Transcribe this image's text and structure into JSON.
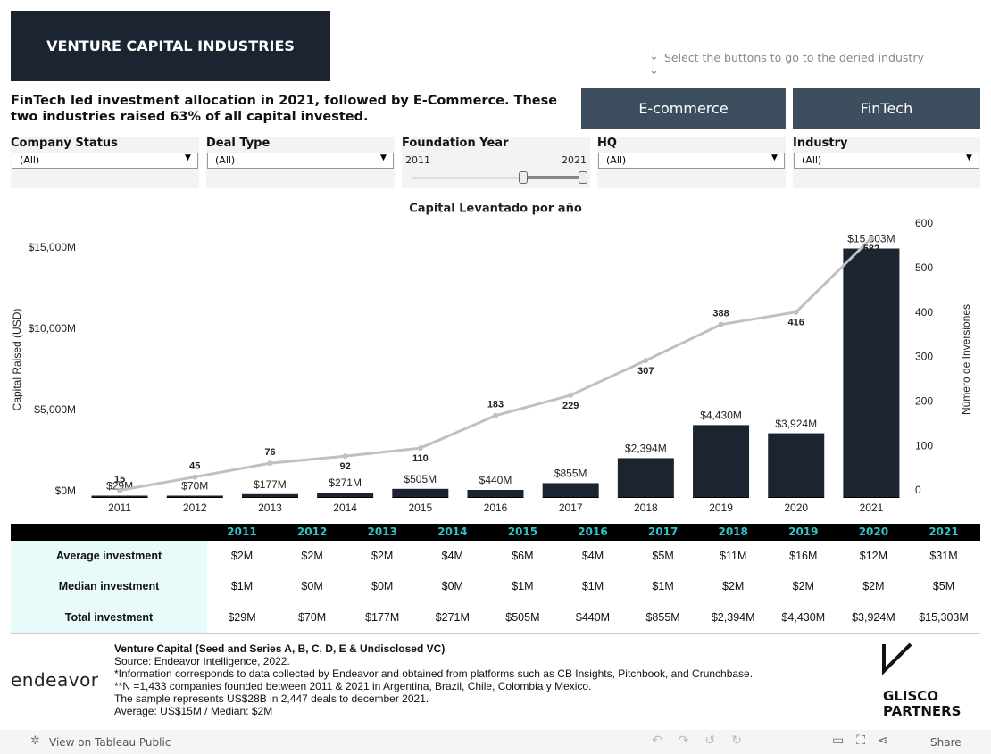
{
  "header": {
    "title": "VENTURE CAPITAL INDUSTRIES",
    "hint": "Select the buttons to go to the deried industry",
    "summary": "FinTech led investment allocation in 2021, followed by E-Commerce. These two industries raised 63% of all capital invested.",
    "buttons": [
      "E-commerce",
      "FinTech"
    ]
  },
  "filters": [
    {
      "label": "Company Status",
      "value": "(All)"
    },
    {
      "label": "Deal Type",
      "value": "(All)"
    },
    {
      "label": "Foundation Year",
      "min": 2011,
      "max": 2021
    },
    {
      "label": "HQ",
      "value": "(All)"
    },
    {
      "label": "Industry",
      "value": "(All)"
    }
  ],
  "chart_data": {
    "type": "combo",
    "title": "Capital Levantado por año",
    "y_label": "Capital Raised (USD)",
    "y2_label": "Número de Inversiones",
    "categories": [
      "2011",
      "2012",
      "2013",
      "2014",
      "2015",
      "2016",
      "2017",
      "2018",
      "2019",
      "2020",
      "2021"
    ],
    "series": [
      {
        "type": "bar",
        "color": "#1c2331",
        "values": [
          29,
          70,
          177,
          271,
          505,
          440,
          855,
          2394,
          4430,
          3924,
          15303
        ],
        "value_labels": [
          "$29M",
          "$70M",
          "$177M",
          "$271M",
          "$505M",
          "$440M",
          "$855M",
          "$2,394M",
          "$4,430M",
          "$3,924M",
          "$15,303M"
        ]
      },
      {
        "type": "line",
        "axis": "y2",
        "color": "#c0c0c0",
        "values": [
          15,
          45,
          76,
          92,
          110,
          183,
          229,
          307,
          388,
          416,
          582
        ]
      }
    ],
    "ylim": [
      0,
      16430
    ],
    "yticks": [
      {
        "value": 0,
        "label": "$0M"
      },
      {
        "value": 5000,
        "label": "$5,000M"
      },
      {
        "value": 10000,
        "label": "$10,000M"
      },
      {
        "value": 15000,
        "label": "$15,000M"
      }
    ],
    "y2lim": [
      0,
      600
    ],
    "y2ticks": [
      0,
      100,
      200,
      300,
      400,
      500,
      600
    ],
    "grid": false
  },
  "table": {
    "columns": [
      2011,
      2012,
      2013,
      2014,
      2015,
      2016,
      2017,
      2018,
      2019,
      2020,
      2021
    ],
    "rows": [
      {
        "label": "Average investment",
        "values": [
          "$2M",
          "$2M",
          "$2M",
          "$4M",
          "$6M",
          "$4M",
          "$5M",
          "$11M",
          "$16M",
          "$12M",
          "$31M"
        ]
      },
      {
        "label": "Median investment",
        "values": [
          "$1M",
          "$0M",
          "$0M",
          "$0M",
          "$1M",
          "$1M",
          "$1M",
          "$2M",
          "$2M",
          "$2M",
          "$5M"
        ]
      },
      {
        "label": "Total investment",
        "values": [
          "$29M",
          "$70M",
          "$177M",
          "$271M",
          "$505M",
          "$440M",
          "$855M",
          "$2,394M",
          "$4,430M",
          "$3,924M",
          "$15,303M"
        ]
      }
    ]
  },
  "footer": {
    "lines": [
      "Venture Capital (Seed and Series A, B, C, D, E & Undisclosed VC)",
      "Source: Endeavor Intelligence, 2022.",
      "*Information corresponds to data collected by Endeavor and obtained from platforms such as CB Insights, Pitchbook, and Crunchbase.",
      "**N =1,433 companies founded between 2011 & 2021 in Argentina, Brazil, Chile, Colombia y Mexico.",
      "The sample represents US$28B in 2,447 deals to december 2021.",
      "Average: US$15M / Median: $2M"
    ],
    "logo_left": "endeavor",
    "logo_right": [
      "GLISCO",
      "PARTNERS"
    ]
  },
  "toolbar": {
    "view": "View on Tableau Public",
    "share": "Share"
  }
}
